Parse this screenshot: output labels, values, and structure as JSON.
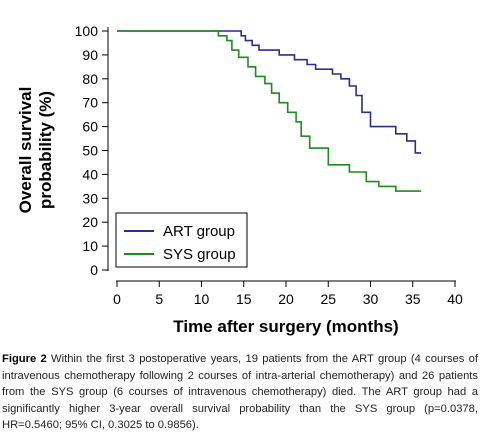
{
  "chart_data": {
    "type": "line",
    "title": "",
    "xlabel": "Time after surgery (months)",
    "ylabel": "Overall survival probability (%)",
    "ylabel_lines": [
      "Overall survival",
      "probability (%)"
    ],
    "xlim": [
      0,
      40
    ],
    "ylim": [
      0,
      100
    ],
    "x_ticks": [
      0,
      5,
      10,
      15,
      20,
      25,
      30,
      35,
      40
    ],
    "y_ticks": [
      0,
      10,
      20,
      30,
      40,
      50,
      60,
      70,
      80,
      90,
      100
    ],
    "grid": false,
    "legend_position": "bottom-left",
    "series": [
      {
        "name": "ART group",
        "color": "#2b2f86",
        "step_points": [
          [
            0,
            100
          ],
          [
            14.7,
            100
          ],
          [
            14.7,
            98
          ],
          [
            15.2,
            98
          ],
          [
            15.2,
            96
          ],
          [
            16,
            96
          ],
          [
            16,
            94
          ],
          [
            16.8,
            94
          ],
          [
            16.8,
            92
          ],
          [
            19.2,
            92
          ],
          [
            19.2,
            90
          ],
          [
            21,
            90
          ],
          [
            21,
            88
          ],
          [
            22.5,
            88
          ],
          [
            22.5,
            86
          ],
          [
            23.5,
            86
          ],
          [
            23.5,
            84
          ],
          [
            25.5,
            84
          ],
          [
            25.5,
            82
          ],
          [
            26.5,
            82
          ],
          [
            26.5,
            80
          ],
          [
            27.5,
            80
          ],
          [
            27.5,
            77
          ],
          [
            28.3,
            77
          ],
          [
            28.3,
            73
          ],
          [
            29,
            73
          ],
          [
            29,
            66
          ],
          [
            30,
            66
          ],
          [
            30,
            60
          ],
          [
            33,
            60
          ],
          [
            33,
            57
          ],
          [
            34.3,
            57
          ],
          [
            34.3,
            54
          ],
          [
            35.3,
            54
          ],
          [
            35.3,
            49
          ],
          [
            36,
            49
          ]
        ]
      },
      {
        "name": "SYS group",
        "color": "#1f8a1f",
        "step_points": [
          [
            0,
            100
          ],
          [
            12,
            100
          ],
          [
            12,
            98
          ],
          [
            13,
            98
          ],
          [
            13,
            96
          ],
          [
            13.6,
            96
          ],
          [
            13.6,
            92
          ],
          [
            14.4,
            92
          ],
          [
            14.4,
            89
          ],
          [
            15.5,
            89
          ],
          [
            15.5,
            85
          ],
          [
            16.4,
            85
          ],
          [
            16.4,
            81
          ],
          [
            17.5,
            81
          ],
          [
            17.5,
            78
          ],
          [
            18.3,
            78
          ],
          [
            18.3,
            74
          ],
          [
            19.2,
            74
          ],
          [
            19.2,
            70
          ],
          [
            20.2,
            70
          ],
          [
            20.2,
            66
          ],
          [
            21.2,
            66
          ],
          [
            21.2,
            62
          ],
          [
            21.8,
            62
          ],
          [
            21.8,
            56
          ],
          [
            22.8,
            56
          ],
          [
            22.8,
            51
          ],
          [
            25,
            51
          ],
          [
            25,
            44
          ],
          [
            27.5,
            44
          ],
          [
            27.5,
            41
          ],
          [
            29.5,
            41
          ],
          [
            29.5,
            37
          ],
          [
            31,
            37
          ],
          [
            31,
            35
          ],
          [
            33,
            35
          ],
          [
            33,
            33
          ],
          [
            36,
            33
          ]
        ]
      }
    ]
  },
  "caption": {
    "label": "Figure 2",
    "text": " Within the first 3 postoperative years, 19 patients from the ART group (4 courses of intravenous chemotherapy following 2 courses of intra-arterial chemotherapy) and 26 patients from the SYS group (6 courses of intravenous chemotherapy) died. The ART group had a significantly higher 3-year overall survival probability than the SYS group (p=0.0378, HR=0.5460; 95% CI, 0.3025 to 0.9856)."
  }
}
